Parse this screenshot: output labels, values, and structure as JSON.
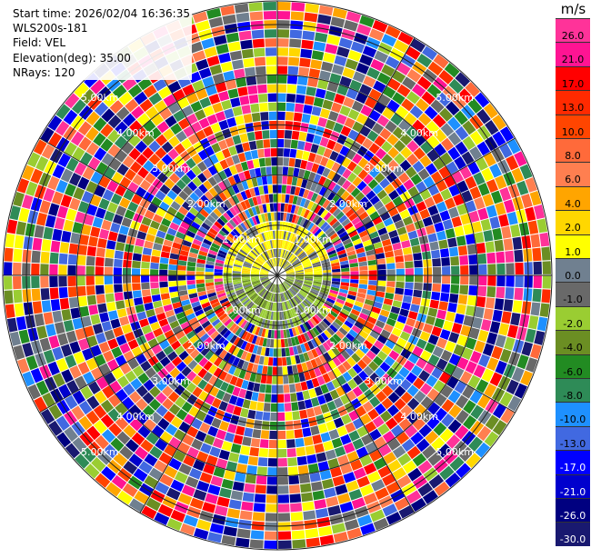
{
  "info": {
    "start_time": "Start time: 2026/02/04 16:36:35",
    "station": "WLS200s-181",
    "field": "Field: VEL",
    "elevation": "Elevation(deg): 35.00",
    "nrays": "NRays: 120"
  },
  "chart_data": {
    "type": "heatmap",
    "subtype": "polar-ppi",
    "n_rays": 120,
    "range_rings_km": [
      1,
      2,
      3,
      4,
      5
    ],
    "range_ring_labels": [
      "1.00km",
      "2.00km",
      "3.00km",
      "4.00km",
      "5.00km"
    ],
    "colorbar": {
      "unit": "m/s",
      "tick_labels": [
        "26.0",
        "21.0",
        "17.0",
        "13.0",
        "10.0",
        "8.0",
        "6.0",
        "4.0",
        "2.0",
        "1.0",
        "0.0",
        "-1.0",
        "-2.0",
        "-4.0",
        "-6.0",
        "-8.0",
        "-10.0",
        "-13.0",
        "-17.0",
        "-21.0",
        "-26.0",
        "-30.0"
      ],
      "colors": [
        "#ff3399",
        "#ff1493",
        "#ff0000",
        "#ff2a00",
        "#ff4500",
        "#ff6a3a",
        "#ff7f50",
        "#ffa500",
        "#ffd700",
        "#ffff00",
        "#708090",
        "#696969",
        "#9acd32",
        "#6b8e23",
        "#228b22",
        "#2e8b57",
        "#1e90ff",
        "#4169e1",
        "#0000ff",
        "#0000cd",
        "#000080",
        "#191970"
      ]
    }
  }
}
